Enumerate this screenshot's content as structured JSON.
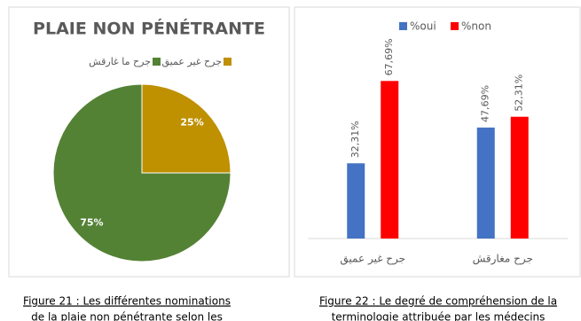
{
  "chart_data": [
    {
      "type": "pie",
      "title": "PLAIE NON PÉNÉTRANTE",
      "categories": [
        "جرح غير عميق",
        "جرح ما غارقش"
      ],
      "values": [
        25,
        75
      ],
      "value_labels": [
        "25%",
        "75%"
      ],
      "colors": [
        "#bf9000",
        "#548235"
      ],
      "legend": "top"
    },
    {
      "type": "bar",
      "categories": [
        "جرح غير عميق",
        "جرح مغارقش"
      ],
      "series": [
        {
          "name": "%oui",
          "color": "#4472c4",
          "values": [
            32.31,
            47.69
          ],
          "value_labels": [
            "32,31%",
            "47,69%"
          ]
        },
        {
          "name": "%non",
          "color": "#ff0000",
          "values": [
            67.69,
            52.31
          ],
          "value_labels": [
            "67,69%",
            "52,31%"
          ]
        }
      ],
      "ylim": [
        0,
        80
      ],
      "legend": "top"
    }
  ],
  "captions": [
    [
      "Figure 21 : Les différentes nominations",
      "de la plaie non pénétrante selon les"
    ],
    [
      "Figure 22 : Le degré de compréhension de la",
      "terminologie attribuée par les médecins"
    ]
  ]
}
